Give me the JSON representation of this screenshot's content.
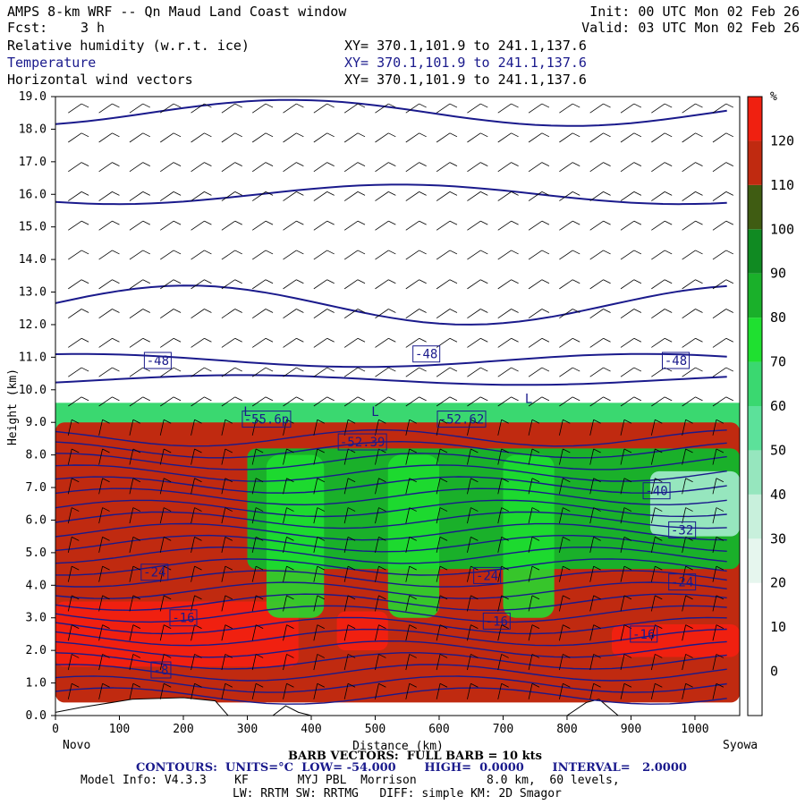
{
  "header": {
    "title": "AMPS 8-km WRF -- Qn Maud Land Coast window",
    "init": "Init: 00 UTC Mon 02 Feb 26",
    "fcst_label": "Fcst:",
    "fcst_value": "3 h",
    "valid": "Valid: 03 UTC Mon 02 Feb 26",
    "fields": [
      {
        "name": "Relative humidity (w.r.t. ice)",
        "xy": "XY= 370.1,101.9 to 241.1,137.6"
      },
      {
        "name": "Temperature",
        "xy": "XY= 370.1,101.9 to 241.1,137.6"
      },
      {
        "name": "Horizontal wind vectors",
        "xy": "XY= 370.1,101.9 to 241.1,137.6"
      }
    ]
  },
  "footer": {
    "left_endpoint": "Novo",
    "right_endpoint": "Syowa",
    "barb_note": "BARB VECTORS:  FULL BARB = 10 kts",
    "contours": "CONTOURS:  UNITS=°C  LOW= -54.000       HIGH=  0.0000       INTERVAL=   2.0000",
    "model_line1": "Model Info: V4.3.3    KF       MYJ PBL  Morrison          8.0 km,  60 levels,",
    "model_line2": "LW: RRTM SW: RRTMG   DIFF: simple KM: 2D Smagor"
  },
  "chart_data": {
    "type": "heatmap",
    "description_fields": [
      "Relative humidity (w.r.t. ice)",
      "Temperature",
      "Horizontal wind vectors"
    ],
    "xlabel": "Distance (km)",
    "ylabel": "Height (km)",
    "xlim": [
      0,
      1070
    ],
    "ylim": [
      0,
      19
    ],
    "x_ticks": [
      0,
      100,
      200,
      300,
      400,
      500,
      600,
      700,
      800,
      900,
      1000
    ],
    "y_ticks": [
      "0.0",
      "1.0",
      "2.0",
      "3.0",
      "4.0",
      "5.0",
      "6.0",
      "7.0",
      "8.0",
      "9.0",
      "10.0",
      "11.0",
      "12.0",
      "13.0",
      "14.0",
      "15.0",
      "16.0",
      "17.0",
      "18.0",
      "19.0"
    ],
    "colorbar": {
      "unit": "%",
      "labels": [
        0,
        10,
        20,
        30,
        40,
        50,
        60,
        70,
        80,
        90,
        100,
        110,
        120
      ],
      "colors": [
        "#ffffff",
        "#ffffff",
        "#ffffff",
        "#e6f6ee",
        "#c8f0dc",
        "#96e6be",
        "#5ce19a",
        "#3ad870",
        "#1fe030",
        "#1ab02a",
        "#108a22",
        "#3f5c12",
        "#c02a10",
        "#f02010"
      ]
    },
    "contour_labels": [
      {
        "text": "-48",
        "x": 160,
        "y": 10.9
      },
      {
        "text": "-48",
        "x": 580,
        "y": 11.1
      },
      {
        "text": "-48",
        "x": 970,
        "y": 10.9
      },
      {
        "text": "-55.6p",
        "x": 330,
        "y": 9.1
      },
      {
        "text": "-52.62",
        "x": 635,
        "y": 9.1
      },
      {
        "text": "-52.39",
        "x": 480,
        "y": 8.4
      },
      {
        "text": "-40",
        "x": 940,
        "y": 6.9
      },
      {
        "text": "-32",
        "x": 980,
        "y": 5.7
      },
      {
        "text": "-24",
        "x": 155,
        "y": 4.4
      },
      {
        "text": "-24",
        "x": 675,
        "y": 4.3
      },
      {
        "text": "-24",
        "x": 980,
        "y": 4.1
      },
      {
        "text": "-16",
        "x": 200,
        "y": 3.0
      },
      {
        "text": "-16",
        "x": 690,
        "y": 2.9
      },
      {
        "text": "-16",
        "x": 920,
        "y": 2.5
      },
      {
        "text": "-8",
        "x": 165,
        "y": 1.4
      }
    ],
    "min_labels": [
      {
        "text": "L",
        "x": 300,
        "y": 9.2
      },
      {
        "text": "L",
        "x": 500,
        "y": 9.2
      },
      {
        "text": "L",
        "x": 740,
        "y": 9.6
      }
    ],
    "rh_regions": [
      {
        "rh": 110,
        "xmin": 0,
        "xmax": 1070,
        "ymin": 0.4,
        "ymax": 9.0
      },
      {
        "rh": 120,
        "xmin": 0,
        "xmax": 380,
        "ymin": 1.5,
        "ymax": 3.5
      },
      {
        "rh": 120,
        "xmin": 440,
        "xmax": 520,
        "ymin": 2.0,
        "ymax": 3.2
      },
      {
        "rh": 120,
        "xmin": 870,
        "xmax": 1070,
        "ymin": 1.8,
        "ymax": 2.8
      },
      {
        "rh": 80,
        "xmin": 300,
        "xmax": 1070,
        "ymin": 4.5,
        "ymax": 8.2
      },
      {
        "rh": 45,
        "xmin": 930,
        "xmax": 1070,
        "ymin": 5.5,
        "ymax": 7.5
      }
    ],
    "grid": false
  }
}
